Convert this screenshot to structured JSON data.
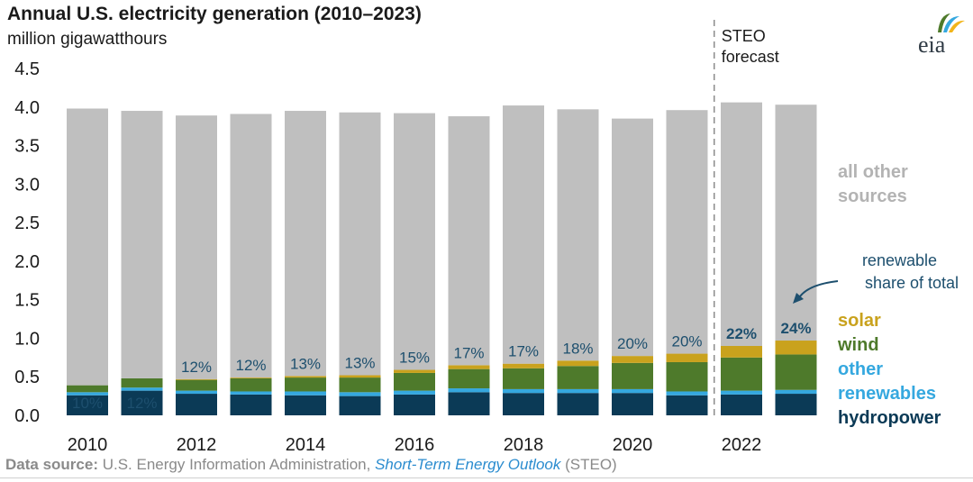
{
  "title": "Annual U.S. electricity generation (2010–2023)",
  "subtitle": "million gigawatthours",
  "logo_text": "eia",
  "source": {
    "label": "Data source:",
    "agency": " U.S. Energy Information Administration, ",
    "publication": "Short-Term Energy Outlook",
    "suffix": " (STEO)"
  },
  "colors": {
    "hydropower": "#0b3a56",
    "other_renewables": "#35a8df",
    "wind": "#4e7a2b",
    "solar": "#c9a21d",
    "all_other": "#bfbfbf",
    "label_dark": "#1d4f6e",
    "axis_text": "#1a1a1a"
  },
  "chart_data": {
    "type": "bar",
    "stacked": true,
    "title": "Annual U.S. electricity generation (2010–2023)",
    "ylabel": "million gigawatthours",
    "ylim": [
      0,
      4.5
    ],
    "yticks": [
      "0.0",
      "0.5",
      "1.0",
      "1.5",
      "2.0",
      "2.5",
      "3.0",
      "3.5",
      "4.0",
      "4.5"
    ],
    "grid": false,
    "categories": [
      "2010",
      "2011",
      "2012",
      "2013",
      "2014",
      "2015",
      "2016",
      "2017",
      "2018",
      "2019",
      "2020",
      "2021",
      "2022",
      "2023"
    ],
    "xtick_labels": [
      "2010",
      "",
      "2012",
      "",
      "2014",
      "",
      "2016",
      "",
      "2018",
      "",
      "2020",
      "",
      "2022",
      ""
    ],
    "series": [
      {
        "name": "hydropower",
        "values": [
          0.26,
          0.32,
          0.28,
          0.27,
          0.26,
          0.25,
          0.27,
          0.3,
          0.29,
          0.29,
          0.29,
          0.26,
          0.27,
          0.28
        ]
      },
      {
        "name": "other renewables",
        "values": [
          0.04,
          0.04,
          0.04,
          0.04,
          0.05,
          0.05,
          0.05,
          0.05,
          0.05,
          0.05,
          0.05,
          0.05,
          0.05,
          0.05
        ]
      },
      {
        "name": "wind",
        "values": [
          0.09,
          0.12,
          0.14,
          0.17,
          0.18,
          0.19,
          0.23,
          0.25,
          0.27,
          0.3,
          0.34,
          0.38,
          0.43,
          0.46
        ]
      },
      {
        "name": "solar",
        "values": [
          0.0,
          0.0,
          0.01,
          0.01,
          0.02,
          0.03,
          0.04,
          0.05,
          0.06,
          0.07,
          0.09,
          0.11,
          0.15,
          0.18
        ]
      },
      {
        "name": "all other sources",
        "values": [
          3.59,
          3.47,
          3.42,
          3.42,
          3.44,
          3.41,
          3.33,
          3.23,
          3.35,
          3.26,
          3.08,
          3.16,
          3.16,
          3.06
        ]
      }
    ],
    "totals": [
      3.98,
      3.95,
      3.89,
      3.91,
      3.94,
      3.92,
      3.92,
      3.88,
      4.02,
      3.97,
      3.85,
      3.96,
      4.06,
      4.03
    ],
    "renewable_share_labels": [
      "10%",
      "12%",
      "12%",
      "12%",
      "13%",
      "13%",
      "15%",
      "17%",
      "17%",
      "18%",
      "20%",
      "20%",
      "22%",
      "24%"
    ],
    "forecast": {
      "start_category": "2022",
      "label_line1": "STEO",
      "label_line2": "forecast"
    },
    "legend": {
      "placement": "right",
      "all_other": [
        "all other",
        "sources"
      ],
      "share_note": [
        "renewable",
        "share of total"
      ],
      "solar": "solar",
      "wind": "wind",
      "other_renewables": [
        "other",
        "renewables"
      ],
      "hydropower": "hydropower"
    }
  }
}
